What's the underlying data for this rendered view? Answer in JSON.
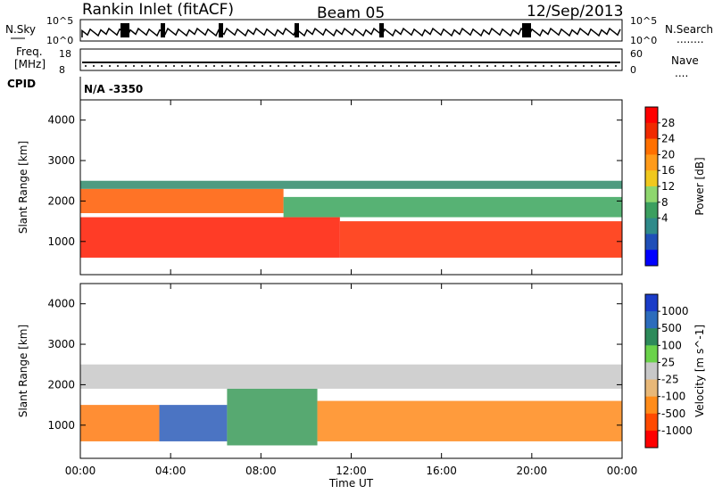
{
  "header": {
    "station": "Rankin Inlet (fitACF)",
    "beam": "Beam 05",
    "date": "12/Sep/2013"
  },
  "top_panel": {
    "nsky_label": "N.Sky",
    "nsearch_label": "N.Search",
    "nsearch_dots": "........",
    "left_ticks": [
      "10^5",
      "10^0"
    ],
    "right_ticks": [
      "10^5",
      "10^0"
    ],
    "freq_label_line1": "Freq.",
    "freq_label_line2": "[MHz]",
    "freq_ticks": [
      "18",
      "8"
    ],
    "nave_label": "Nave",
    "nave_dots": "....",
    "nave_ticks": [
      "60",
      "0"
    ],
    "cpid_label": "CPID",
    "cpid_value": "N/A  -3350"
  },
  "chart_data": [
    {
      "type": "heatmap",
      "title": "",
      "xlabel": "",
      "ylabel": "Slant Range [km]",
      "x_ticks": [
        "00:00",
        "04:00",
        "08:00",
        "12:00",
        "16:00",
        "20:00",
        "00:00"
      ],
      "y_ticks": [
        "1000",
        "2000",
        "3000",
        "4000"
      ],
      "ylim": [
        180,
        4500
      ],
      "colorbar": {
        "label": "Power [dB]",
        "tick_labels": [
          "28",
          "24",
          "20",
          "16",
          "12",
          "8",
          "4"
        ],
        "colors": [
          "#ff0000",
          "#f02a00",
          "#ff7000",
          "#ff9b1a",
          "#f0c81e",
          "#8ed66e",
          "#3b9f5f",
          "#2f8a8a",
          "#1f4fb8",
          "#0000ff"
        ]
      },
      "bands": [
        {
          "hour_start": 0.0,
          "hour_end": 11.5,
          "range_low": 600,
          "range_high": 1600,
          "color": "#ff1a00"
        },
        {
          "hour_start": 11.5,
          "hour_end": 24.0,
          "range_low": 600,
          "range_high": 1500,
          "color": "#ff2a00"
        },
        {
          "hour_start": 0.0,
          "hour_end": 9.0,
          "range_low": 1700,
          "range_high": 2300,
          "color": "#ff5a00"
        },
        {
          "hour_start": 9.0,
          "hour_end": 24.0,
          "range_low": 1600,
          "range_high": 2100,
          "color": "#3aa45c"
        },
        {
          "hour_start": 0.0,
          "hour_end": 24.0,
          "range_low": 2300,
          "range_high": 2500,
          "color": "#2f8a6a"
        }
      ]
    },
    {
      "type": "heatmap",
      "title": "",
      "xlabel": "Time UT",
      "ylabel": "Slant Range [km]",
      "x_ticks": [
        "00:00",
        "04:00",
        "08:00",
        "12:00",
        "16:00",
        "20:00",
        "00:00"
      ],
      "y_ticks": [
        "1000",
        "2000",
        "3000",
        "4000"
      ],
      "ylim": [
        180,
        4500
      ],
      "colorbar": {
        "label": "Velocity [m s^-1]",
        "tick_labels": [
          "1000",
          "500",
          "100",
          "25",
          "-25",
          "-100",
          "-500",
          "-1000"
        ],
        "colors": [
          "#1a3cc8",
          "#2c6cbc",
          "#2d8a5a",
          "#6ad24a",
          "#c8c8c8",
          "#e8b878",
          "#ff8c1a",
          "#ff4a00",
          "#ff0000"
        ]
      },
      "bands": [
        {
          "hour_start": 0.0,
          "hour_end": 3.5,
          "range_low": 600,
          "range_high": 1500,
          "color": "#ff7a10"
        },
        {
          "hour_start": 3.5,
          "hour_end": 6.5,
          "range_low": 600,
          "range_high": 1500,
          "color": "#2c5cb8"
        },
        {
          "hour_start": 6.5,
          "hour_end": 10.5,
          "range_low": 500,
          "range_high": 1900,
          "color": "#3a9a58"
        },
        {
          "hour_start": 10.5,
          "hour_end": 24.0,
          "range_low": 600,
          "range_high": 1600,
          "color": "#ff8a1a"
        },
        {
          "hour_start": 0.0,
          "hour_end": 24.0,
          "range_low": 1900,
          "range_high": 2500,
          "color": "#c8c8c8"
        }
      ]
    }
  ]
}
